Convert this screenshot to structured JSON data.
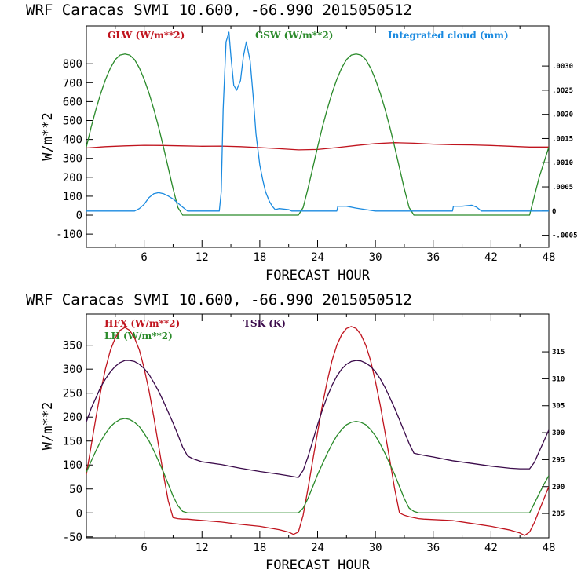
{
  "colors": {
    "red": "#c0141e",
    "green": "#2a8a2a",
    "blue": "#1a8ae0",
    "purple": "#3a0a4a"
  },
  "chart_data": [
    {
      "type": "line",
      "title": "WRF  Caracas SVMI  10.600, -66.990  2015050512",
      "xlabel": "FORECAST HOUR",
      "ylabel": "W/m**2",
      "xlim": [
        0,
        48
      ],
      "ylim": [
        -170,
        1000
      ],
      "xticks": [
        "6",
        "12",
        "18",
        "24",
        "30",
        "36",
        "42",
        "48"
      ],
      "yticks": [
        "-100",
        "0",
        "100",
        "200",
        "300",
        "400",
        "500",
        "600",
        "700",
        "800"
      ],
      "y2lim": [
        -0.00075,
        0.00383
      ],
      "y2ticks": [
        "-.0005",
        "0",
        ".0005",
        ".0010",
        ".0015",
        ".0020",
        ".0025",
        ".0030"
      ],
      "legend": [
        "GLW (W/m**2)",
        "GSW (W/m**2)",
        "Integrated cloud (mm)"
      ],
      "series": [
        {
          "name": "GLW (W/m**2)",
          "axis": "left",
          "color": "red",
          "x": [
            0,
            2,
            4,
            6,
            8,
            10,
            12,
            14,
            16,
            18,
            20,
            22,
            24,
            26,
            28,
            30,
            32,
            34,
            36,
            38,
            40,
            42,
            44,
            46,
            48
          ],
          "values": [
            355,
            362,
            366,
            369,
            368,
            366,
            364,
            365,
            362,
            357,
            351,
            345,
            347,
            357,
            368,
            378,
            383,
            380,
            375,
            372,
            371,
            368,
            364,
            360,
            360
          ]
        },
        {
          "name": "GSW (W/m**2)",
          "axis": "left",
          "color": "green",
          "x": [
            0,
            0.5,
            1,
            1.5,
            2,
            2.5,
            3,
            3.5,
            4,
            4.5,
            5,
            5.5,
            6,
            6.5,
            7,
            7.5,
            8,
            8.5,
            9,
            9.5,
            10,
            10.5,
            22,
            22.5,
            23,
            23.5,
            24,
            24.5,
            25,
            25.5,
            26,
            26.5,
            27,
            27.5,
            28,
            28.5,
            29,
            29.5,
            30,
            30.5,
            31,
            31.5,
            32,
            32.5,
            33,
            33.5,
            34,
            34.5,
            46,
            46.5,
            47,
            47.5,
            48
          ],
          "values": [
            360,
            465,
            560,
            645,
            718,
            778,
            822,
            846,
            852,
            846,
            822,
            778,
            718,
            645,
            560,
            465,
            360,
            250,
            140,
            40,
            0,
            0,
            0,
            40,
            140,
            250,
            360,
            465,
            560,
            645,
            718,
            778,
            822,
            846,
            852,
            846,
            822,
            778,
            718,
            645,
            560,
            465,
            360,
            250,
            140,
            40,
            0,
            0,
            0,
            100,
            200,
            280,
            360
          ]
        },
        {
          "name": "Integrated cloud (mm)",
          "axis": "right",
          "color": "blue",
          "x": [
            0,
            5,
            5.5,
            6,
            6.5,
            7,
            7.5,
            8,
            8.5,
            9,
            10,
            10.5,
            13.8,
            14,
            14.2,
            14.5,
            14.8,
            15,
            15.3,
            15.6,
            16,
            16.3,
            16.6,
            17,
            17.3,
            17.6,
            18,
            18.3,
            18.6,
            19,
            19.3,
            19.6,
            20,
            21,
            21.3,
            26,
            26.1,
            27,
            28,
            29,
            30,
            38,
            38.1,
            39,
            40,
            40.5,
            41,
            48
          ],
          "values": [
            0,
            0,
            5e-05,
            0.00014,
            0.00028,
            0.00036,
            0.00038,
            0.00036,
            0.00031,
            0.00025,
            8e-05,
            0,
            0,
            0.0004,
            0.0021,
            0.0035,
            0.0037,
            0.0032,
            0.0026,
            0.0025,
            0.0027,
            0.0032,
            0.0035,
            0.0031,
            0.0024,
            0.0016,
            0.00095,
            0.00065,
            0.0004,
            0.0002,
            0.0001,
            3e-05,
            5e-05,
            3e-05,
            0,
            0,
            0.0001,
            0.0001,
            6e-05,
            3e-05,
            0,
            0,
            0.0001,
            0.0001,
            0.00012,
            8e-05,
            0,
            0
          ]
        }
      ]
    },
    {
      "type": "line",
      "title": "WRF  Caracas SVMI  10.600, -66.990  2015050512",
      "xlabel": "FORECAST HOUR",
      "ylabel": "W/m**2",
      "xlim": [
        0,
        48
      ],
      "ylim": [
        -52,
        415
      ],
      "xticks": [
        "6",
        "12",
        "18",
        "24",
        "30",
        "36",
        "42",
        "48"
      ],
      "yticks": [
        "-50",
        "0",
        "50",
        "100",
        "150",
        "200",
        "250",
        "300",
        "350"
      ],
      "y2lim": [
        280.5,
        322
      ],
      "y2ticks": [
        "285",
        "290",
        "295",
        "300",
        "305",
        "310",
        "315"
      ],
      "legend": [
        "HFX (W/m**2)",
        "LH (W/m**2)",
        "TSK (K)"
      ],
      "series": [
        {
          "name": "HFX (W/m**2)",
          "axis": "left",
          "color": "red",
          "x": [
            0,
            0.5,
            1,
            1.5,
            2,
            2.5,
            3,
            3.5,
            4,
            4.5,
            5,
            5.5,
            6,
            6.5,
            7,
            7.5,
            8,
            8.5,
            9,
            9.5,
            10,
            10.5,
            11,
            14,
            16,
            18,
            20,
            21,
            21.5,
            22,
            22.5,
            23,
            23.5,
            24,
            24.5,
            25,
            25.5,
            26,
            26.5,
            27,
            27.5,
            28,
            28.5,
            29,
            29.5,
            30,
            30.5,
            31,
            31.5,
            32,
            32.5,
            33,
            33.5,
            34,
            34.5,
            35,
            38,
            40,
            42,
            44,
            45,
            45.5,
            46,
            46.5,
            47,
            47.5,
            48
          ],
          "values": [
            80,
            140,
            200,
            255,
            302,
            340,
            365,
            381,
            387,
            381,
            365,
            340,
            302,
            255,
            200,
            140,
            80,
            25,
            -10,
            -12,
            -13,
            -13,
            -14,
            -19,
            -24,
            -28,
            -35,
            -40,
            -45,
            -40,
            -5,
            50,
            110,
            168,
            225,
            275,
            318,
            350,
            372,
            385,
            389,
            385,
            372,
            350,
            318,
            275,
            225,
            168,
            110,
            50,
            0,
            -5,
            -8,
            -10,
            -12,
            -13,
            -16,
            -22,
            -28,
            -36,
            -42,
            -47,
            -40,
            -20,
            5,
            30,
            55
          ]
        },
        {
          "name": "LH (W/m**2)",
          "axis": "left",
          "color": "green",
          "x": [
            0,
            0.5,
            1,
            1.5,
            2,
            2.5,
            3,
            3.5,
            4,
            4.5,
            5,
            5.5,
            6,
            6.5,
            7,
            7.5,
            8,
            8.5,
            9,
            9.5,
            10,
            10.5,
            22,
            22.5,
            23,
            23.5,
            24,
            24.5,
            25,
            25.5,
            26,
            26.5,
            27,
            27.5,
            28,
            28.5,
            29,
            29.5,
            30,
            30.5,
            31,
            31.5,
            32,
            32.5,
            33,
            33.5,
            34,
            34.5,
            46,
            46.5,
            47,
            47.5,
            48
          ],
          "values": [
            85,
            108,
            130,
            150,
            166,
            180,
            189,
            195,
            197,
            195,
            189,
            180,
            166,
            150,
            130,
            108,
            85,
            60,
            35,
            15,
            3,
            0,
            0,
            10,
            30,
            55,
            80,
            102,
            124,
            144,
            161,
            174,
            184,
            189,
            191,
            189,
            184,
            174,
            161,
            144,
            124,
            102,
            80,
            55,
            30,
            10,
            3,
            0,
            0,
            20,
            40,
            60,
            78
          ]
        },
        {
          "name": "TSK (K)",
          "axis": "right",
          "color": "purple",
          "x": [
            0,
            0.5,
            1,
            1.5,
            2,
            2.5,
            3,
            3.5,
            4,
            4.5,
            5,
            5.5,
            6,
            6.5,
            7,
            7.5,
            8,
            8.5,
            9,
            9.5,
            10,
            10.5,
            11,
            12,
            14,
            16,
            18,
            20,
            21,
            22,
            22.5,
            23,
            23.5,
            24,
            24.5,
            25,
            25.5,
            26,
            26.5,
            27,
            27.5,
            28,
            28.5,
            29,
            29.5,
            30,
            30.5,
            31,
            31.5,
            32,
            32.5,
            33,
            33.5,
            34,
            34.5,
            35,
            36,
            38,
            40,
            42,
            44,
            45,
            46,
            46.5,
            47,
            47.5,
            48
          ],
          "values": [
            302,
            304.5,
            306.5,
            308.5,
            310,
            311.3,
            312.3,
            313,
            313.4,
            313.4,
            313.2,
            312.7,
            311.9,
            310.8,
            309.3,
            307.7,
            305.8,
            303.8,
            301.8,
            299.6,
            297.3,
            295.7,
            295.2,
            294.6,
            294.1,
            293.4,
            292.8,
            292.3,
            292,
            291.7,
            293,
            295.5,
            298.5,
            301.5,
            304.2,
            306.7,
            308.8,
            310.5,
            311.8,
            312.7,
            313.2,
            313.4,
            313.3,
            312.9,
            312.3,
            311.3,
            310,
            308.4,
            306.5,
            304.5,
            302.4,
            300.2,
            298,
            296.2,
            296,
            295.8,
            295.5,
            294.8,
            294.3,
            293.8,
            293.4,
            293.3,
            293.3,
            294.5,
            296.5,
            298.5,
            300.5
          ]
        }
      ]
    }
  ]
}
